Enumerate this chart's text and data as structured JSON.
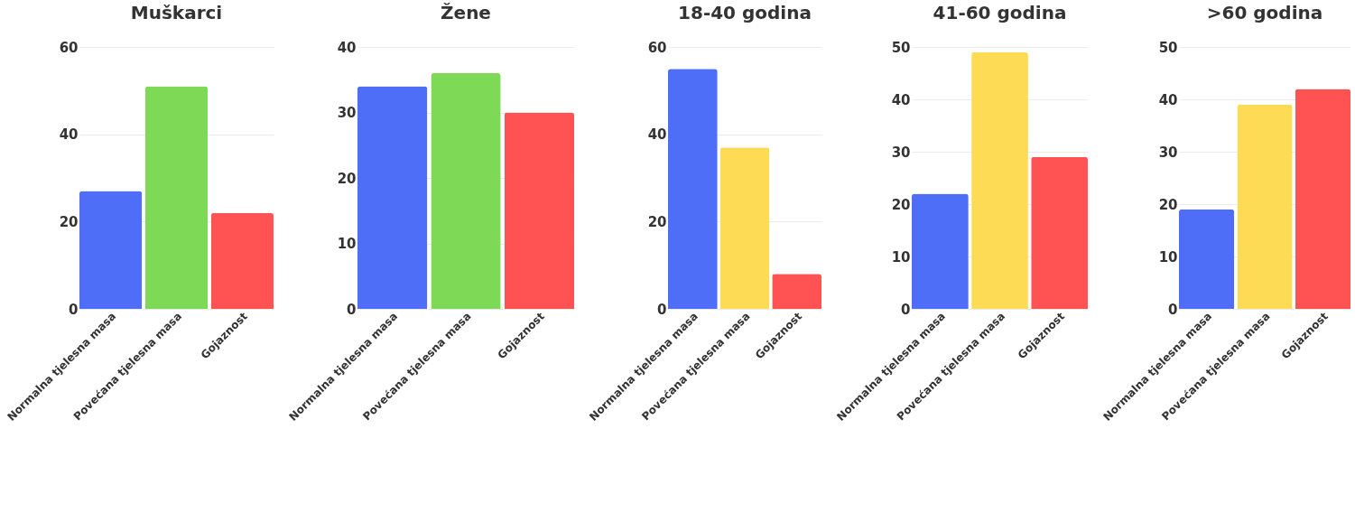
{
  "chart_data": [
    {
      "type": "bar",
      "title": "Muškarci",
      "categories": [
        "Normalna tjelesna masa",
        "Povećana tjelesna masa",
        "Gojaznost"
      ],
      "values": [
        27,
        51,
        22
      ],
      "colors": [
        "#4f6ef7",
        "#7ed957",
        "#ff5252"
      ],
      "ylim": [
        0,
        60
      ],
      "yticks": [
        0,
        20,
        40,
        60
      ],
      "grid": "y"
    },
    {
      "type": "bar",
      "title": "Žene",
      "categories": [
        "Normalna tjelesna masa",
        "Povećana tjelesna masa",
        "Gojaznost"
      ],
      "values": [
        34,
        36,
        30
      ],
      "colors": [
        "#4f6ef7",
        "#7ed957",
        "#ff5252"
      ],
      "ylim": [
        0,
        40
      ],
      "yticks": [
        0,
        10,
        20,
        30,
        40
      ],
      "grid": "y"
    },
    {
      "type": "bar",
      "title": "18-40 godina",
      "categories": [
        "Normalna tjelesna masa",
        "Povećana tjelesna masa",
        "Gojaznost"
      ],
      "values": [
        55,
        37,
        8
      ],
      "colors": [
        "#4f6ef7",
        "#fedb55",
        "#ff5252"
      ],
      "ylim": [
        0,
        60
      ],
      "yticks": [
        0,
        20,
        40,
        60
      ],
      "grid": "y"
    },
    {
      "type": "bar",
      "title": "41-60 godina",
      "categories": [
        "Normalna tjelesna masa",
        "Povećana tjelesna masa",
        "Gojaznost"
      ],
      "values": [
        22,
        49,
        29
      ],
      "colors": [
        "#4f6ef7",
        "#fedb55",
        "#ff5252"
      ],
      "ylim": [
        0,
        50
      ],
      "yticks": [
        0,
        10,
        20,
        30,
        40,
        50
      ],
      "grid": "y"
    },
    {
      "type": "bar",
      "title": ">60 godina",
      "categories": [
        "Normalna tjelesna masa",
        "Povećana tjelesna masa",
        "Gojaznost"
      ],
      "values": [
        19,
        39,
        42
      ],
      "colors": [
        "#4f6ef7",
        "#fedb55",
        "#ff5252"
      ],
      "ylim": [
        0,
        50
      ],
      "yticks": [
        0,
        10,
        20,
        30,
        40,
        50
      ],
      "grid": "y"
    }
  ]
}
